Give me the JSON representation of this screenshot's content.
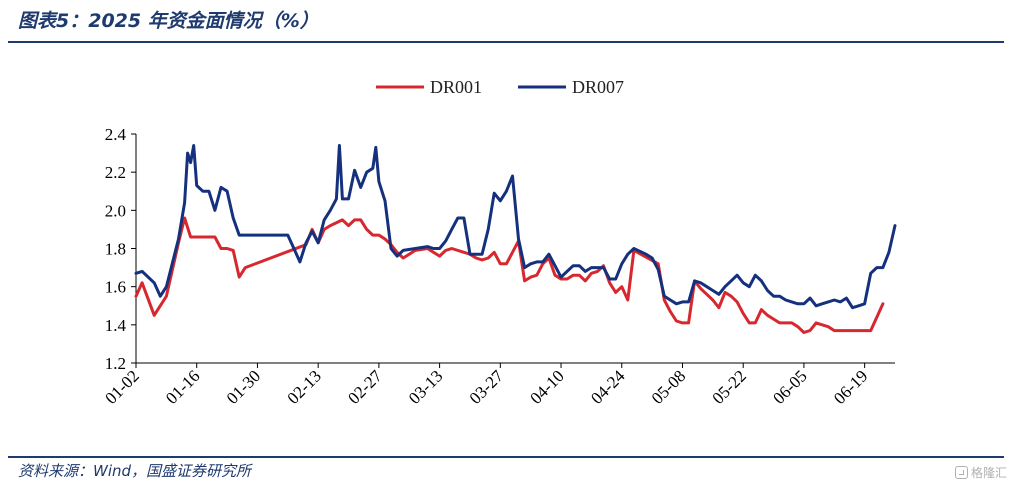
{
  "header": {
    "title": "图表5：2025 年资金面情况（%）"
  },
  "footer": {
    "source": "资料来源：Wind，国盛证券研究所",
    "watermark": "格隆汇"
  },
  "colors": {
    "dr001": "#d7282f",
    "dr007": "#15317e",
    "rule": "#1f3a6e"
  },
  "chart_data": {
    "type": "line",
    "title": "",
    "xlabel": "",
    "ylabel": "",
    "ylim": [
      1.2,
      2.4
    ],
    "yticks": [
      "2.4",
      "2.2",
      "2.0",
      "1.8",
      "1.6",
      "1.4",
      "1.2"
    ],
    "xticks": [
      "01-02",
      "01-16",
      "01-30",
      "02-13",
      "02-27",
      "03-13",
      "03-27",
      "04-10",
      "04-24",
      "05-08",
      "05-22",
      "06-05",
      "06-19"
    ],
    "legend_position": "top-center",
    "series": [
      {
        "name": "DR001",
        "color": "#d7282f",
        "points": [
          [
            0,
            1.55
          ],
          [
            1,
            1.62
          ],
          [
            3,
            1.45
          ],
          [
            5,
            1.55
          ],
          [
            7,
            1.83
          ],
          [
            8,
            1.96
          ],
          [
            9,
            1.86
          ],
          [
            13,
            1.86
          ],
          [
            14,
            1.8
          ],
          [
            15,
            1.8
          ],
          [
            16,
            1.79
          ],
          [
            17,
            1.65
          ],
          [
            18,
            1.7
          ],
          [
            28,
            1.82
          ],
          [
            29,
            1.9
          ],
          [
            30,
            1.83
          ],
          [
            31,
            1.9
          ],
          [
            32,
            1.92
          ],
          [
            34,
            1.95
          ],
          [
            35,
            1.92
          ],
          [
            36,
            1.95
          ],
          [
            37,
            1.95
          ],
          [
            38,
            1.9
          ],
          [
            39,
            1.87
          ],
          [
            40,
            1.87
          ],
          [
            41,
            1.85
          ],
          [
            42,
            1.82
          ],
          [
            43,
            1.78
          ],
          [
            44,
            1.75
          ],
          [
            46,
            1.79
          ],
          [
            48,
            1.8
          ],
          [
            49,
            1.78
          ],
          [
            50,
            1.76
          ],
          [
            51,
            1.79
          ],
          [
            52,
            1.8
          ],
          [
            54,
            1.78
          ],
          [
            55,
            1.77
          ],
          [
            56,
            1.75
          ],
          [
            57,
            1.74
          ],
          [
            58,
            1.75
          ],
          [
            59,
            1.78
          ],
          [
            60,
            1.72
          ],
          [
            61,
            1.72
          ],
          [
            62,
            1.78
          ],
          [
            63,
            1.84
          ],
          [
            64,
            1.63
          ],
          [
            65,
            1.65
          ],
          [
            66,
            1.66
          ],
          [
            67,
            1.72
          ],
          [
            68,
            1.75
          ],
          [
            69,
            1.66
          ],
          [
            70,
            1.64
          ],
          [
            71,
            1.64
          ],
          [
            72,
            1.66
          ],
          [
            73,
            1.66
          ],
          [
            74,
            1.63
          ],
          [
            75,
            1.67
          ],
          [
            76,
            1.68
          ],
          [
            77,
            1.71
          ],
          [
            78,
            1.62
          ],
          [
            79,
            1.57
          ],
          [
            80,
            1.6
          ],
          [
            81,
            1.53
          ],
          [
            82,
            1.79
          ],
          [
            86,
            1.72
          ],
          [
            87,
            1.53
          ],
          [
            88,
            1.47
          ],
          [
            89,
            1.42
          ],
          [
            90,
            1.41
          ],
          [
            91,
            1.41
          ],
          [
            92,
            1.63
          ],
          [
            93,
            1.59
          ],
          [
            94,
            1.56
          ],
          [
            95,
            1.53
          ],
          [
            96,
            1.49
          ],
          [
            97,
            1.57
          ],
          [
            98,
            1.55
          ],
          [
            99,
            1.52
          ],
          [
            100,
            1.46
          ],
          [
            101,
            1.41
          ],
          [
            102,
            1.41
          ],
          [
            103,
            1.48
          ],
          [
            104,
            1.45
          ],
          [
            105,
            1.43
          ],
          [
            106,
            1.41
          ],
          [
            107,
            1.41
          ],
          [
            108,
            1.41
          ],
          [
            109,
            1.39
          ],
          [
            110,
            1.36
          ],
          [
            111,
            1.37
          ],
          [
            112,
            1.41
          ],
          [
            113,
            1.4
          ],
          [
            114,
            1.39
          ],
          [
            115,
            1.37
          ],
          [
            116,
            1.37
          ],
          [
            117,
            1.37
          ],
          [
            118,
            1.37
          ],
          [
            119,
            1.37
          ],
          [
            120,
            1.37
          ],
          [
            121,
            1.37
          ],
          [
            122,
            1.44
          ],
          [
            123,
            1.51
          ]
        ]
      },
      {
        "name": "DR007",
        "color": "#15317e",
        "points": [
          [
            0,
            1.67
          ],
          [
            1,
            1.68
          ],
          [
            3,
            1.62
          ],
          [
            4,
            1.55
          ],
          [
            5,
            1.6
          ],
          [
            7,
            1.85
          ],
          [
            8,
            2.04
          ],
          [
            8.5,
            2.3
          ],
          [
            9,
            2.25
          ],
          [
            9.5,
            2.34
          ],
          [
            10,
            2.13
          ],
          [
            11,
            2.1
          ],
          [
            12,
            2.1
          ],
          [
            13,
            2.0
          ],
          [
            14,
            2.12
          ],
          [
            15,
            2.1
          ],
          [
            16,
            1.96
          ],
          [
            17,
            1.87
          ],
          [
            25,
            1.87
          ],
          [
            26,
            1.8
          ],
          [
            27,
            1.73
          ],
          [
            28,
            1.83
          ],
          [
            29,
            1.89
          ],
          [
            30,
            1.83
          ],
          [
            31,
            1.95
          ],
          [
            32,
            2.0
          ],
          [
            33,
            2.06
          ],
          [
            33.5,
            2.34
          ],
          [
            34,
            2.06
          ],
          [
            35,
            2.06
          ],
          [
            36,
            2.21
          ],
          [
            37,
            2.12
          ],
          [
            38,
            2.2
          ],
          [
            39,
            2.22
          ],
          [
            39.5,
            2.33
          ],
          [
            40,
            2.15
          ],
          [
            41,
            2.05
          ],
          [
            42,
            1.8
          ],
          [
            43,
            1.76
          ],
          [
            44,
            1.79
          ],
          [
            46,
            1.8
          ],
          [
            48,
            1.81
          ],
          [
            49,
            1.8
          ],
          [
            50,
            1.8
          ],
          [
            51,
            1.84
          ],
          [
            52,
            1.9
          ],
          [
            53,
            1.96
          ],
          [
            54,
            1.96
          ],
          [
            55,
            1.77
          ],
          [
            56,
            1.77
          ],
          [
            57,
            1.77
          ],
          [
            58,
            1.9
          ],
          [
            59,
            2.09
          ],
          [
            60,
            2.05
          ],
          [
            61,
            2.1
          ],
          [
            62,
            2.18
          ],
          [
            63,
            1.85
          ],
          [
            64,
            1.7
          ],
          [
            65,
            1.72
          ],
          [
            66,
            1.73
          ],
          [
            67,
            1.73
          ],
          [
            68,
            1.77
          ],
          [
            69,
            1.71
          ],
          [
            70,
            1.65
          ],
          [
            71,
            1.68
          ],
          [
            72,
            1.71
          ],
          [
            73,
            1.71
          ],
          [
            74,
            1.68
          ],
          [
            75,
            1.7
          ],
          [
            76,
            1.7
          ],
          [
            77,
            1.7
          ],
          [
            78,
            1.64
          ],
          [
            79,
            1.64
          ],
          [
            80,
            1.72
          ],
          [
            81,
            1.77
          ],
          [
            82,
            1.8
          ],
          [
            84,
            1.77
          ],
          [
            85,
            1.75
          ],
          [
            86,
            1.69
          ],
          [
            87,
            1.55
          ],
          [
            88,
            1.53
          ],
          [
            89,
            1.51
          ],
          [
            90,
            1.52
          ],
          [
            91,
            1.52
          ],
          [
            92,
            1.63
          ],
          [
            93,
            1.62
          ],
          [
            94,
            1.6
          ],
          [
            95,
            1.58
          ],
          [
            96,
            1.56
          ],
          [
            97,
            1.6
          ],
          [
            98,
            1.63
          ],
          [
            99,
            1.66
          ],
          [
            100,
            1.62
          ],
          [
            101,
            1.6
          ],
          [
            102,
            1.66
          ],
          [
            103,
            1.63
          ],
          [
            104,
            1.58
          ],
          [
            105,
            1.55
          ],
          [
            106,
            1.55
          ],
          [
            107,
            1.53
          ],
          [
            108,
            1.52
          ],
          [
            109,
            1.51
          ],
          [
            110,
            1.51
          ],
          [
            111,
            1.54
          ],
          [
            112,
            1.5
          ],
          [
            113,
            1.51
          ],
          [
            114,
            1.52
          ],
          [
            115,
            1.53
          ],
          [
            116,
            1.52
          ],
          [
            117,
            1.54
          ],
          [
            118,
            1.49
          ],
          [
            119,
            1.5
          ],
          [
            120,
            1.51
          ],
          [
            121,
            1.67
          ],
          [
            122,
            1.7
          ],
          [
            123,
            1.7
          ],
          [
            124,
            1.78
          ],
          [
            125,
            1.92
          ]
        ]
      }
    ]
  }
}
